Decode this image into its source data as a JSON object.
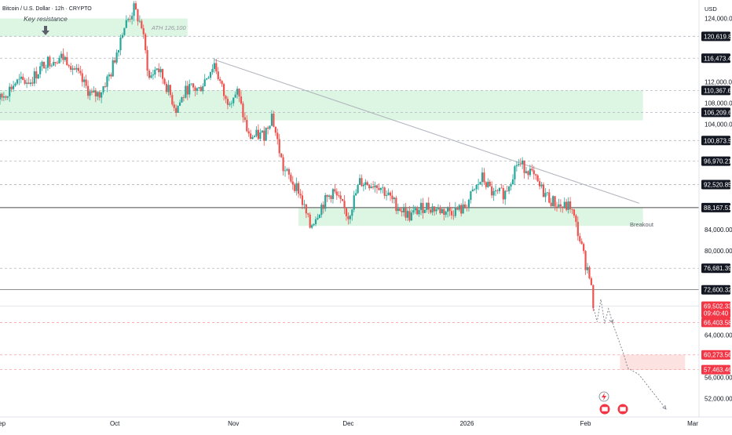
{
  "header": {
    "symbol_title": "Bitcoin / U.S. Dollar · 12h · CRYPTO",
    "currency": "USD"
  },
  "annotations": {
    "key_resistance": "Key resistance",
    "ath": "ATH 126,100",
    "breakout": "Breakout"
  },
  "colors": {
    "up": "#26a69a",
    "down": "#ef5350",
    "zone_green": "#d7f5df",
    "zone_red": "#fde2e2",
    "level_dark": "#4a4a4a",
    "trendline": "#b2b5be",
    "tag_dark": "#131722",
    "tag_red": "#f23645"
  },
  "chart_data": {
    "type": "candlestick",
    "title": "Bitcoin / U.S. Dollar · 12h · CRYPTO",
    "ylim": [
      48500,
      127500
    ],
    "y_ticks": [
      52000,
      56000,
      64000,
      80000,
      84000,
      104000,
      108000,
      112000,
      124000
    ],
    "x_ticks": [
      {
        "label": "Sep",
        "date": "2025-09-01"
      },
      {
        "label": "Oct",
        "date": "2025-10-01"
      },
      {
        "label": "Nov",
        "date": "2025-11-01"
      },
      {
        "label": "Dec",
        "date": "2025-12-01"
      },
      {
        "label": "2026",
        "date": "2026-01-01"
      },
      {
        "label": "Feb",
        "date": "2026-02-01"
      },
      {
        "label": "Mar",
        "date": "2026-03-01"
      }
    ],
    "levels": [
      {
        "price": 120619.82,
        "label": "120,619.82",
        "style": "dashed",
        "tag": "dark"
      },
      {
        "price": 116473.41,
        "label": "116,473.41",
        "style": "dashed",
        "tag": "dark"
      },
      {
        "price": 110367.67,
        "label": "110,367.67",
        "style": "dashed",
        "tag": "dark"
      },
      {
        "price": 106209.61,
        "label": "106,209.61",
        "style": "dashed",
        "tag": "dark"
      },
      {
        "price": 100873.53,
        "label": "100,873.53",
        "style": "dashed",
        "tag": "dark"
      },
      {
        "price": 96970.21,
        "label": "96,970.21",
        "style": "dashed",
        "tag": "dark"
      },
      {
        "price": 92520.85,
        "label": "92,520.85",
        "style": "dashed",
        "tag": "dark"
      },
      {
        "price": 88167.51,
        "label": "88,167.51",
        "style": "solid",
        "tag": "dark"
      },
      {
        "price": 76681.39,
        "label": "76,681.39",
        "style": "dashed",
        "tag": "dark"
      },
      {
        "price": 72600.32,
        "label": "72,600.32",
        "style": "solid",
        "tag": "dark"
      },
      {
        "price": 66403.58,
        "label": "66,403.58",
        "style": "dashed_red",
        "tag": "red"
      },
      {
        "price": 60273.56,
        "label": "60,273.56",
        "style": "dashed_red",
        "tag": "red"
      },
      {
        "price": 57463.46,
        "label": "57,463.46",
        "style": "dashed_red",
        "tag": "red"
      }
    ],
    "current_price": {
      "price": 69502.33,
      "label": "69,502.33",
      "countdown": "09:40:40"
    },
    "zones": [
      {
        "type": "resistance",
        "from": "2025-09-01",
        "to": "2025-10-20",
        "low": 120600,
        "high": 124000
      },
      {
        "type": "support",
        "from": "2025-09-01",
        "to": "2026-02-16",
        "low": 104700,
        "high": 110400
      },
      {
        "type": "breakout",
        "from": "2025-11-18",
        "to": "2026-02-16",
        "low": 84700,
        "high": 88200
      },
      {
        "type": "target",
        "from": "2026-02-10",
        "to": "2026-02-27",
        "low": 57400,
        "high": 60300
      }
    ],
    "trendline": {
      "from": {
        "date": "2025-10-27",
        "price": 116200
      },
      "to": {
        "date": "2026-02-15",
        "price": 89000
      }
    },
    "projection": [
      {
        "date": "2026-02-03",
        "price": 69500
      },
      {
        "date": "2026-02-04",
        "price": 66500
      },
      {
        "date": "2026-02-05",
        "price": 70800
      },
      {
        "date": "2026-02-06",
        "price": 66200
      },
      {
        "date": "2026-02-07",
        "price": 69000
      },
      {
        "date": "2026-02-08",
        "price": 66400
      },
      {
        "date": "2026-02-11",
        "price": 60300
      },
      {
        "date": "2026-02-12",
        "price": 57800
      },
      {
        "date": "2026-02-15",
        "price": 56500
      },
      {
        "date": "2026-02-22",
        "price": 50000
      }
    ],
    "path": [
      {
        "date": "2025-08-25",
        "price": 109500
      },
      {
        "date": "2025-08-29",
        "price": 110500
      },
      {
        "date": "2025-09-01",
        "price": 108700
      },
      {
        "date": "2025-09-05",
        "price": 111800
      },
      {
        "date": "2025-09-09",
        "price": 112200
      },
      {
        "date": "2025-09-13",
        "price": 115800
      },
      {
        "date": "2025-09-17",
        "price": 116700
      },
      {
        "date": "2025-09-19",
        "price": 116000
      },
      {
        "date": "2025-09-22",
        "price": 112500
      },
      {
        "date": "2025-09-25",
        "price": 109300
      },
      {
        "date": "2025-09-27",
        "price": 109800
      },
      {
        "date": "2025-09-30",
        "price": 113800
      },
      {
        "date": "2025-10-03",
        "price": 121800
      },
      {
        "date": "2025-10-06",
        "price": 125800
      },
      {
        "date": "2025-10-08",
        "price": 122500
      },
      {
        "date": "2025-10-10",
        "price": 112500
      },
      {
        "date": "2025-10-12",
        "price": 114800
      },
      {
        "date": "2025-10-14",
        "price": 112000
      },
      {
        "date": "2025-10-17",
        "price": 106800
      },
      {
        "date": "2025-10-20",
        "price": 110800
      },
      {
        "date": "2025-10-23",
        "price": 110500
      },
      {
        "date": "2025-10-27",
        "price": 115500
      },
      {
        "date": "2025-10-30",
        "price": 108300
      },
      {
        "date": "2025-11-02",
        "price": 110000
      },
      {
        "date": "2025-11-05",
        "price": 101500
      },
      {
        "date": "2025-11-09",
        "price": 102000
      },
      {
        "date": "2025-11-11",
        "price": 105800
      },
      {
        "date": "2025-11-14",
        "price": 95500
      },
      {
        "date": "2025-11-18",
        "price": 91500
      },
      {
        "date": "2025-11-21",
        "price": 84500
      },
      {
        "date": "2025-11-24",
        "price": 88500
      },
      {
        "date": "2025-11-27",
        "price": 91300
      },
      {
        "date": "2025-12-01",
        "price": 86500
      },
      {
        "date": "2025-12-04",
        "price": 93000
      },
      {
        "date": "2025-12-09",
        "price": 92500
      },
      {
        "date": "2025-12-13",
        "price": 89000
      },
      {
        "date": "2025-12-17",
        "price": 86500
      },
      {
        "date": "2025-12-21",
        "price": 88500
      },
      {
        "date": "2025-12-26",
        "price": 87500
      },
      {
        "date": "2025-12-31",
        "price": 87800
      },
      {
        "date": "2026-01-05",
        "price": 93800
      },
      {
        "date": "2026-01-08",
        "price": 90500
      },
      {
        "date": "2026-01-11",
        "price": 91000
      },
      {
        "date": "2026-01-14",
        "price": 96500
      },
      {
        "date": "2026-01-17",
        "price": 95500
      },
      {
        "date": "2026-01-20",
        "price": 92000
      },
      {
        "date": "2026-01-23",
        "price": 89500
      },
      {
        "date": "2026-01-26",
        "price": 88200
      },
      {
        "date": "2026-01-28",
        "price": 88500
      },
      {
        "date": "2026-01-30",
        "price": 83500
      },
      {
        "date": "2026-02-01",
        "price": 77500
      },
      {
        "date": "2026-02-02",
        "price": 75800
      },
      {
        "date": "2026-02-03",
        "price": 69500
      }
    ]
  }
}
